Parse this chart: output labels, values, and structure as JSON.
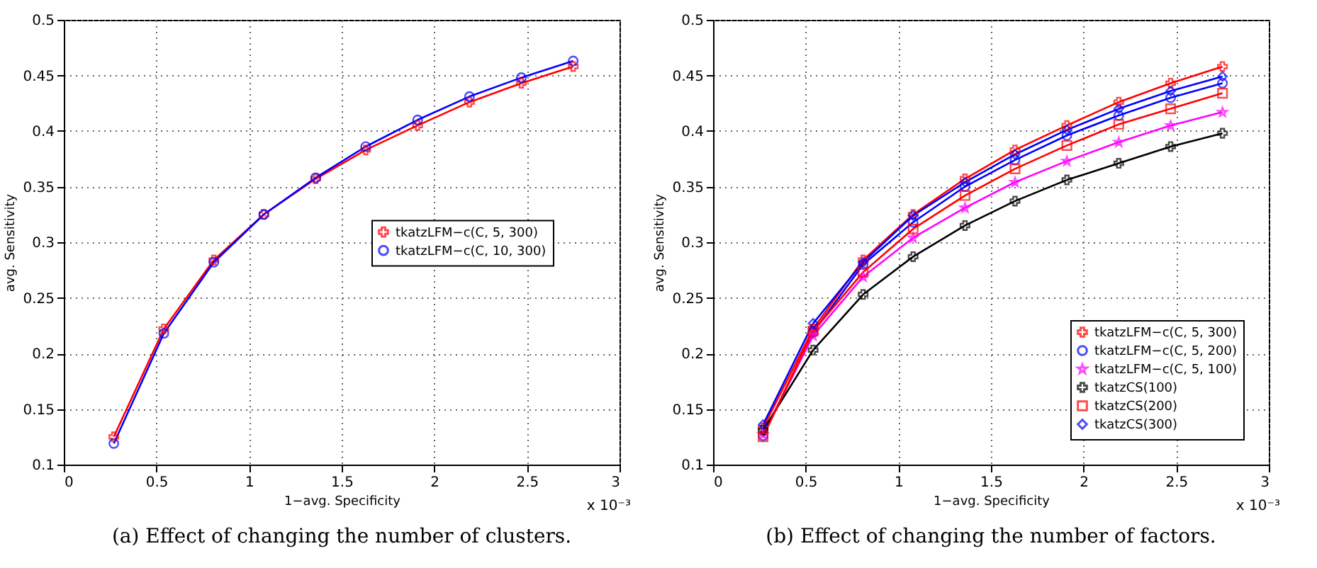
{
  "chart_data": [
    {
      "type": "line",
      "xlabel": "1−avg. Specificity",
      "ylabel": "avg. Sensitivity",
      "annotations": [
        "x 10⁻³",
        "(a) Effect of changing the number of clusters."
      ],
      "x": [
        0.27,
        0.54,
        0.81,
        1.08,
        1.36,
        1.63,
        1.91,
        2.19,
        2.47,
        2.75
      ],
      "xlim": [
        0,
        3
      ],
      "xticks": [
        0,
        0.5,
        1,
        1.5,
        2,
        2.5,
        3
      ],
      "ylim": [
        0.1,
        0.5
      ],
      "yticks": [
        0.1,
        0.15,
        0.2,
        0.25,
        0.3,
        0.35,
        0.4,
        0.45,
        0.5
      ],
      "grid": true,
      "legend": "right",
      "line_style": "solid",
      "series": [
        {
          "name": "tkatzLFM−c(C, 5, 300)",
          "color": "#ff0000",
          "marker": "cross",
          "values": [
            0.125,
            0.222,
            0.284,
            0.325,
            0.357,
            0.383,
            0.405,
            0.426,
            0.443,
            0.458
          ]
        },
        {
          "name": "tkatzLFM−c(C, 10, 300)",
          "color": "#0000ff",
          "marker": "circle",
          "values": [
            0.119,
            0.218,
            0.282,
            0.325,
            0.358,
            0.386,
            0.41,
            0.431,
            0.448,
            0.463
          ]
        }
      ]
    },
    {
      "type": "line",
      "xlabel": "1−avg. Specificity",
      "ylabel": "avg. Sensitivity",
      "annotations": [
        "x 10⁻³",
        "(b) Effect of changing the number of factors."
      ],
      "x": [
        0.27,
        0.54,
        0.81,
        1.08,
        1.36,
        1.63,
        1.91,
        2.19,
        2.47,
        2.75
      ],
      "xlim": [
        0,
        3
      ],
      "xticks": [
        0,
        0.5,
        1,
        1.5,
        2,
        2.5,
        3
      ],
      "ylim": [
        0.1,
        0.5
      ],
      "yticks": [
        0.1,
        0.15,
        0.2,
        0.25,
        0.3,
        0.35,
        0.4,
        0.45,
        0.5
      ],
      "grid": true,
      "legend": "bottom right",
      "line_style": "solid",
      "series": [
        {
          "name": "tkatzLFM−c(C, 5, 300)",
          "color": "#ff0000",
          "marker": "cross",
          "values": [
            0.133,
            0.222,
            0.284,
            0.325,
            0.357,
            0.383,
            0.405,
            0.426,
            0.443,
            0.458
          ]
        },
        {
          "name": "tkatzLFM−c(C, 5, 200)",
          "color": "#0000ff",
          "marker": "circle",
          "values": [
            0.126,
            0.219,
            0.28,
            0.318,
            0.35,
            0.374,
            0.396,
            0.414,
            0.43,
            0.443
          ]
        },
        {
          "name": "tkatzLFM−c(C, 5, 100)",
          "color": "#ff00ff",
          "marker": "star",
          "values": [
            0.127,
            0.216,
            0.269,
            0.304,
            0.331,
            0.354,
            0.373,
            0.39,
            0.405,
            0.417
          ]
        },
        {
          "name": "tkatzCS(100)",
          "color": "#000000",
          "marker": "cross",
          "values": [
            0.131,
            0.203,
            0.253,
            0.287,
            0.315,
            0.337,
            0.356,
            0.371,
            0.386,
            0.398
          ]
        },
        {
          "name": "tkatzCS(200)",
          "color": "#ff0000",
          "marker": "square",
          "values": [
            0.125,
            0.22,
            0.273,
            0.312,
            0.342,
            0.366,
            0.387,
            0.406,
            0.42,
            0.434
          ]
        },
        {
          "name": "tkatzCS(300)",
          "color": "#0000ff",
          "marker": "diamond",
          "values": [
            0.136,
            0.227,
            0.282,
            0.324,
            0.354,
            0.379,
            0.401,
            0.42,
            0.436,
            0.449
          ]
        }
      ]
    }
  ]
}
